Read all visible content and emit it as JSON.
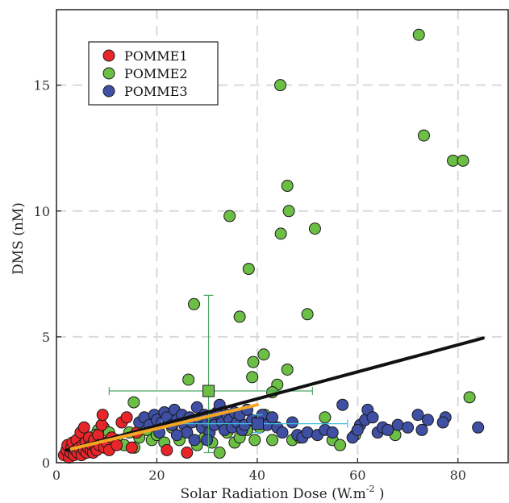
{
  "chart_data": {
    "type": "scatter",
    "title": "",
    "xlabel": "Solar Radiation Dose (W.m",
    "xlabel_sup": "-2",
    "xlabel_close": " )",
    "ylabel": "DMS (nM)",
    "xlim": [
      0,
      90
    ],
    "ylim": [
      0,
      18
    ],
    "xticks": [
      0,
      20,
      40,
      60,
      80
    ],
    "yticks": [
      0,
      5,
      10,
      15
    ],
    "xtick_labels": [
      "0",
      "20",
      "40",
      "60",
      "80"
    ],
    "ytick_labels": [
      "0",
      "5",
      "10",
      "15"
    ],
    "grid": true,
    "legend_position": "top-left",
    "series": [
      {
        "name": "POMME1",
        "color": "#e8262a",
        "points": [
          [
            1.5,
            0.3
          ],
          [
            2,
            0.5
          ],
          [
            2.2,
            0.7
          ],
          [
            2.5,
            0.2
          ],
          [
            2.8,
            0.4
          ],
          [
            3,
            0.6
          ],
          [
            3.2,
            0.8
          ],
          [
            3.5,
            0.3
          ],
          [
            3.8,
            0.5
          ],
          [
            4,
            0.9
          ],
          [
            4.2,
            0.4
          ],
          [
            4.5,
            0.6
          ],
          [
            4.8,
            1.2
          ],
          [
            5,
            0.3
          ],
          [
            5.2,
            0.7
          ],
          [
            5.5,
            0.5
          ],
          [
            5.8,
            0.8
          ],
          [
            6,
            0.4
          ],
          [
            6.3,
            0.6
          ],
          [
            6.5,
            1.0
          ],
          [
            6.8,
            0.5
          ],
          [
            7,
            0.7
          ],
          [
            7.3,
            0.4
          ],
          [
            7.5,
            0.9
          ],
          [
            7.8,
            0.6
          ],
          [
            8,
            0.5
          ],
          [
            8.3,
            1.1
          ],
          [
            8.5,
            0.7
          ],
          [
            9,
            1.5
          ],
          [
            9.2,
            1.9
          ],
          [
            9.5,
            0.6
          ],
          [
            10,
            0.8
          ],
          [
            10.5,
            0.5
          ],
          [
            11,
            1.0
          ],
          [
            12,
            0.7
          ],
          [
            13,
            1.6
          ],
          [
            14,
            1.8
          ],
          [
            15,
            0.6
          ],
          [
            16,
            1.2
          ],
          [
            22,
            0.5
          ],
          [
            26,
            0.4
          ],
          [
            5.5,
            1.4
          ]
        ]
      },
      {
        "name": "POMME2",
        "color": "#6cbf45",
        "points": [
          [
            72.2,
            17.0
          ],
          [
            44.6,
            15.0
          ],
          [
            73.2,
            13.0
          ],
          [
            79,
            12.0
          ],
          [
            81,
            12.0
          ],
          [
            46,
            11.0
          ],
          [
            46.3,
            10.0
          ],
          [
            34.5,
            9.8
          ],
          [
            51.5,
            9.3
          ],
          [
            44.7,
            9.1
          ],
          [
            38.3,
            7.7
          ],
          [
            27.4,
            6.3
          ],
          [
            36.5,
            5.8
          ],
          [
            50,
            5.9
          ],
          [
            41.3,
            4.3
          ],
          [
            39.2,
            4.0
          ],
          [
            46,
            3.7
          ],
          [
            39,
            3.4
          ],
          [
            26.3,
            3.3
          ],
          [
            44,
            3.1
          ],
          [
            43,
            2.8
          ],
          [
            82.3,
            2.6
          ],
          [
            15.4,
            2.4
          ],
          [
            9.4,
            1.4
          ],
          [
            8.3,
            1.3
          ],
          [
            10.5,
            1.2
          ],
          [
            7.7,
            1.1
          ],
          [
            12,
            0.9
          ],
          [
            13.5,
            0.7
          ],
          [
            14.5,
            1.2
          ],
          [
            15.5,
            0.6
          ],
          [
            16.5,
            1.0
          ],
          [
            18,
            1.3
          ],
          [
            19,
            0.9
          ],
          [
            20,
            1.1
          ],
          [
            21.5,
            0.8
          ],
          [
            23,
            1.4
          ],
          [
            24.5,
            0.9
          ],
          [
            26,
            1.2
          ],
          [
            28,
            0.7
          ],
          [
            29.5,
            1.0
          ],
          [
            31,
            0.8
          ],
          [
            32.5,
            0.4
          ],
          [
            34,
            1.2
          ],
          [
            35.5,
            0.8
          ],
          [
            36.5,
            1.0
          ],
          [
            38,
            1.3
          ],
          [
            39.5,
            0.9
          ],
          [
            40.5,
            1.4
          ],
          [
            41.5,
            1.9
          ],
          [
            43,
            0.9
          ],
          [
            47,
            0.9
          ],
          [
            48.5,
            1.0
          ],
          [
            53.5,
            1.8
          ],
          [
            55,
            0.9
          ],
          [
            56.5,
            0.7
          ],
          [
            59.5,
            1.1
          ],
          [
            67.5,
            1.1
          ],
          [
            3,
            0.3
          ],
          [
            4,
            0.5
          ],
          [
            5.5,
            0.6
          ],
          [
            6.5,
            0.8
          ],
          [
            11,
            0.7
          ]
        ]
      },
      {
        "name": "POMME3",
        "color": "#3f4fa3",
        "points": [
          [
            16.5,
            1.6
          ],
          [
            17.5,
            1.8
          ],
          [
            18.5,
            1.5
          ],
          [
            19.5,
            1.9
          ],
          [
            20,
            1.7
          ],
          [
            21,
            1.6
          ],
          [
            21.5,
            2.0
          ],
          [
            22,
            1.8
          ],
          [
            23,
            1.5
          ],
          [
            23.5,
            2.1
          ],
          [
            24,
            1.7
          ],
          [
            25,
            1.9
          ],
          [
            25.5,
            1.5
          ],
          [
            26,
            1.2
          ],
          [
            26.5,
            1.8
          ],
          [
            27,
            1.6
          ],
          [
            28,
            2.2
          ],
          [
            28.5,
            1.7
          ],
          [
            29,
            1.4
          ],
          [
            29.5,
            1.9
          ],
          [
            30,
            1.6
          ],
          [
            30.5,
            1.2
          ],
          [
            31,
            1.8
          ],
          [
            31.5,
            1.5
          ],
          [
            32,
            2.0
          ],
          [
            32.5,
            2.3
          ],
          [
            33,
            1.6
          ],
          [
            33.5,
            1.3
          ],
          [
            34,
            1.9
          ],
          [
            34.5,
            1.7
          ],
          [
            35,
            1.4
          ],
          [
            35.5,
            2.0
          ],
          [
            36,
            1.6
          ],
          [
            36.5,
            1.9
          ],
          [
            37,
            1.3
          ],
          [
            37.5,
            1.5
          ],
          [
            38,
            2.1
          ],
          [
            39,
            1.7
          ],
          [
            40,
            1.6
          ],
          [
            41,
            1.9
          ],
          [
            42,
            1.5
          ],
          [
            43,
            1.8
          ],
          [
            44,
            1.4
          ],
          [
            45,
            1.2
          ],
          [
            47,
            1.6
          ],
          [
            48,
            1.1
          ],
          [
            49,
            1.0
          ],
          [
            50,
            1.2
          ],
          [
            52,
            1.1
          ],
          [
            53.5,
            1.3
          ],
          [
            55,
            1.2
          ],
          [
            57,
            2.3
          ],
          [
            59,
            1.0
          ],
          [
            60.5,
            1.5
          ],
          [
            61.5,
            1.7
          ],
          [
            62,
            2.1
          ],
          [
            63,
            1.8
          ],
          [
            64,
            1.2
          ],
          [
            65,
            1.4
          ],
          [
            66,
            1.3
          ],
          [
            68,
            1.5
          ],
          [
            70,
            1.4
          ],
          [
            72,
            1.9
          ],
          [
            74,
            1.7
          ],
          [
            77.5,
            1.8
          ],
          [
            84,
            1.4
          ],
          [
            24,
            1.1
          ],
          [
            27.5,
            0.9
          ],
          [
            20.5,
            1.2
          ],
          [
            30,
            0.9
          ],
          [
            72.8,
            1.3
          ],
          [
            77,
            1.6
          ],
          [
            60,
            1.3
          ]
        ]
      }
    ],
    "means": [
      {
        "series": "POMME2",
        "x": 30.3,
        "y": 2.85,
        "xerr": [
          10.5,
          51
        ],
        "yerr": [
          0.4,
          6.65
        ],
        "color": "#6cbf45",
        "err_color": "#4aa864"
      },
      {
        "series": "POMME3",
        "x": 40.1,
        "y": 1.55,
        "xerr": [
          21,
          58
        ],
        "yerr": [
          1.2,
          1.9
        ],
        "color": "#3f4fa3",
        "err_color": "#40c0e0"
      }
    ],
    "fits": [
      {
        "color": "#111111",
        "from": [
          2,
          0.5
        ],
        "to": [
          85,
          4.95
        ]
      },
      {
        "color": "#f5a623",
        "from": [
          3,
          0.55
        ],
        "to": [
          40,
          2.3
        ]
      }
    ]
  }
}
